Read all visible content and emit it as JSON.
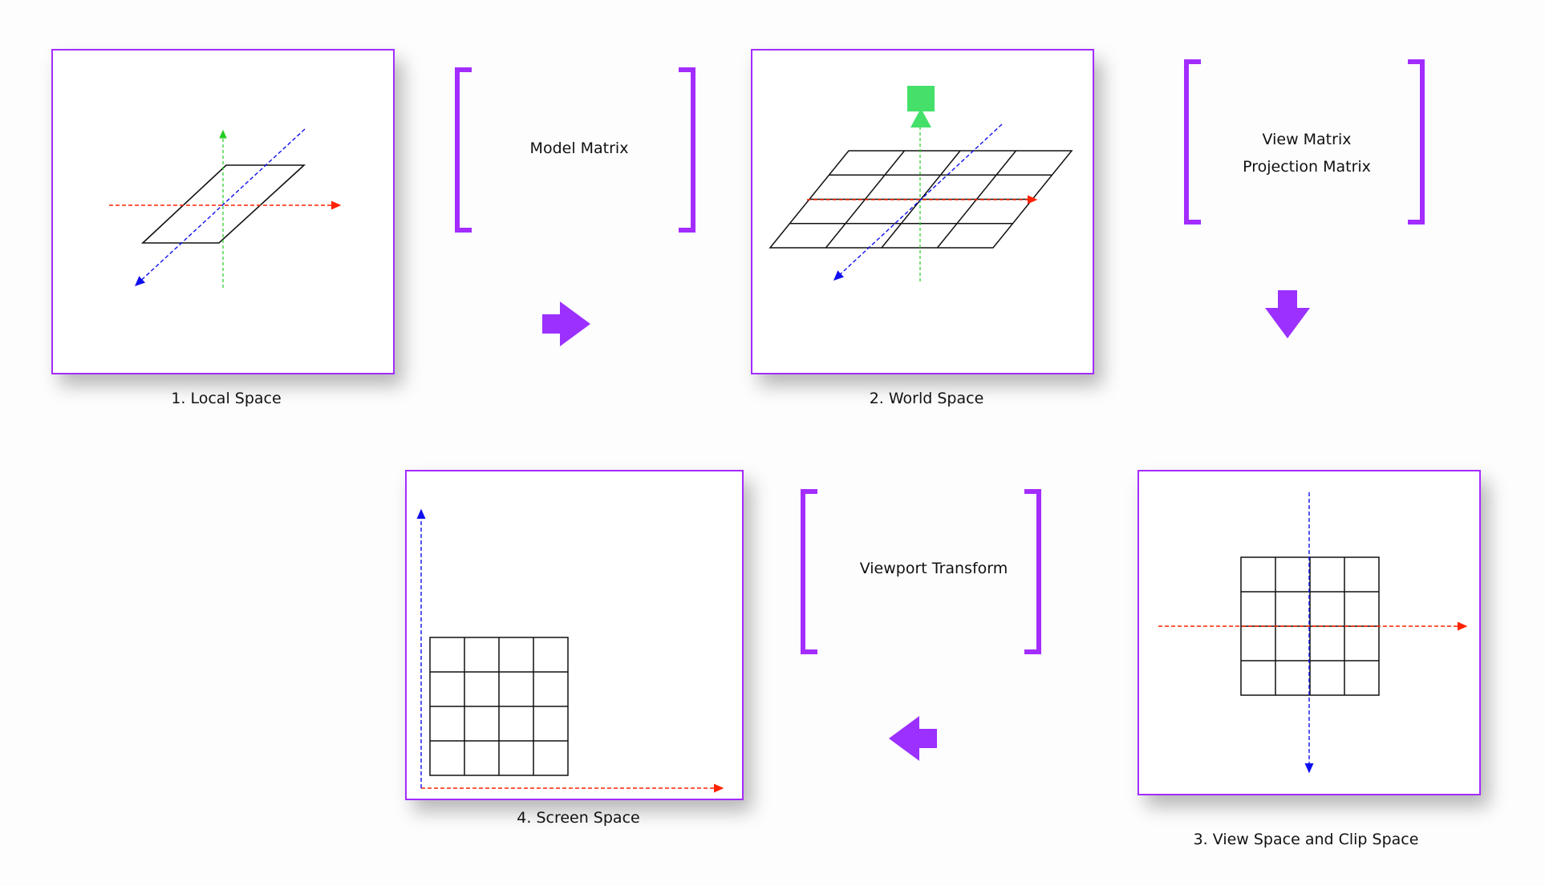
{
  "stages": [
    {
      "caption": "1. Local Space"
    },
    {
      "caption": "2. World Space"
    },
    {
      "caption": "3. View Space and Clip Space"
    },
    {
      "caption": "4. Screen Space"
    }
  ],
  "transforms": [
    {
      "lines": [
        "Model Matrix"
      ]
    },
    {
      "lines": [
        "View Matrix",
        "Projection Matrix"
      ]
    },
    {
      "lines": [
        "Viewport Transform"
      ]
    }
  ],
  "colors": {
    "frame": "#a32cff",
    "arrow": "#9b30ff",
    "axis_x": "#ff2200",
    "axis_y": "#22cc22",
    "axis_z": "#1010ee",
    "camera": "#44e06a",
    "grid": "#111111"
  },
  "icons": {
    "flow_arrows": [
      "arrow-right-icon",
      "arrow-down-icon",
      "arrow-left-icon"
    ],
    "camera": "camera-icon"
  }
}
